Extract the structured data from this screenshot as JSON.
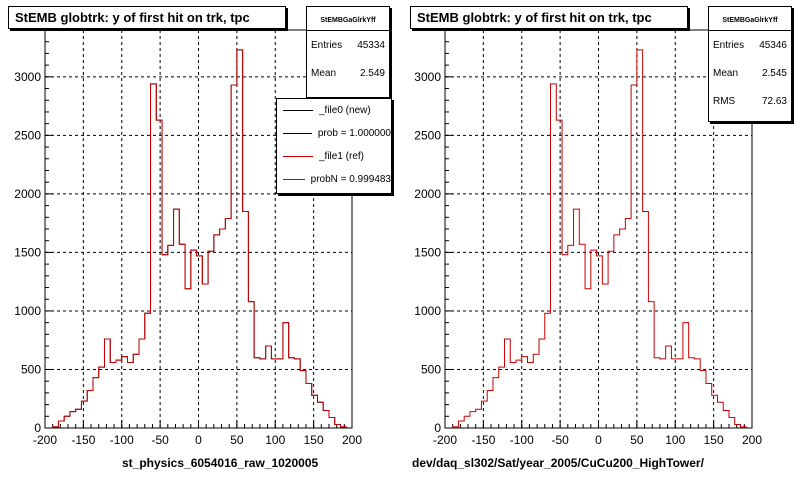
{
  "chart_data": [
    {
      "type": "histogram",
      "title": "StEMB globtrk: y of first hit on trk, tpc",
      "xlabel": "st_physics_6054016_raw_1020005",
      "ylabel": "",
      "xlim": [
        -200,
        200
      ],
      "ylim": [
        0,
        3400
      ],
      "x_ticks": [
        -200,
        -150,
        -100,
        -50,
        0,
        50,
        100,
        150,
        200
      ],
      "y_ticks": [
        0,
        500,
        1000,
        1500,
        2000,
        2500,
        3000
      ],
      "grid": true,
      "bin_edges_start": -190,
      "bin_width": 7.5,
      "series": [
        {
          "name": "_file0 (new)",
          "color": "#000000",
          "values": [
            10,
            60,
            100,
            140,
            160,
            230,
            320,
            430,
            520,
            760,
            560,
            580,
            610,
            560,
            630,
            760,
            980,
            2940,
            2630,
            1480,
            1560,
            1870,
            1570,
            1190,
            1520,
            1470,
            1230,
            1510,
            1650,
            1700,
            1790,
            2930,
            3230,
            1850,
            1080,
            600,
            590,
            700,
            590,
            590,
            900,
            600,
            590,
            490,
            380,
            280,
            220,
            150,
            90,
            30,
            10
          ]
        },
        {
          "name": "_file1 (ref)",
          "color": "#cc0000",
          "values": [
            10,
            60,
            100,
            140,
            160,
            230,
            320,
            430,
            520,
            760,
            560,
            580,
            610,
            560,
            630,
            760,
            980,
            2940,
            2630,
            1480,
            1560,
            1870,
            1570,
            1190,
            1520,
            1470,
            1230,
            1510,
            1650,
            1700,
            1790,
            2930,
            3230,
            1850,
            1080,
            600,
            590,
            700,
            590,
            590,
            900,
            600,
            590,
            490,
            380,
            280,
            220,
            150,
            90,
            30,
            10
          ]
        }
      ]
    },
    {
      "type": "histogram",
      "title": "StEMB globtrk: y of first hit on trk, tpc",
      "xlabel": "dev/daq_sl302/Sat/year_2005/CuCu200_HighTower/",
      "ylabel": "",
      "xlim": [
        -200,
        200
      ],
      "ylim": [
        0,
        3400
      ],
      "x_ticks": [
        -200,
        -150,
        -100,
        -50,
        0,
        50,
        100,
        150,
        200
      ],
      "y_ticks": [
        0,
        500,
        1000,
        1500,
        2000,
        2500,
        3000
      ],
      "grid": true,
      "bin_edges_start": -190,
      "bin_width": 7.5,
      "series": [
        {
          "name": "",
          "color": "#cc0000",
          "values": [
            10,
            60,
            100,
            140,
            160,
            230,
            320,
            430,
            520,
            760,
            560,
            580,
            610,
            560,
            630,
            760,
            980,
            2940,
            2630,
            1480,
            1560,
            1870,
            1570,
            1190,
            1520,
            1470,
            1230,
            1510,
            1650,
            1700,
            1790,
            2930,
            3230,
            1850,
            1080,
            600,
            590,
            700,
            590,
            590,
            900,
            600,
            590,
            490,
            380,
            280,
            220,
            150,
            90,
            30,
            10
          ]
        }
      ]
    }
  ],
  "left": {
    "stats": {
      "name": "StEMBGaGlrkYff",
      "entries_label": "Entries",
      "entries": "45334",
      "mean_label": "Mean",
      "mean": "2.549"
    },
    "legend": [
      {
        "label": "_file0 (new)",
        "color": "#000000"
      },
      {
        "label": "prob = 1.000000",
        "color": "#000000"
      },
      {
        "label": "_file1 (ref)",
        "color": "#cc0000"
      },
      {
        "label": "probN = 0.999483",
        "color": "#cc0000"
      }
    ]
  },
  "right": {
    "stats": {
      "name": "StEMBGaGlrkYff",
      "entries_label": "Entries",
      "entries": "45346",
      "mean_label": "Mean",
      "mean": "2.545",
      "rms_label": "RMS",
      "rms": "72.63"
    }
  }
}
